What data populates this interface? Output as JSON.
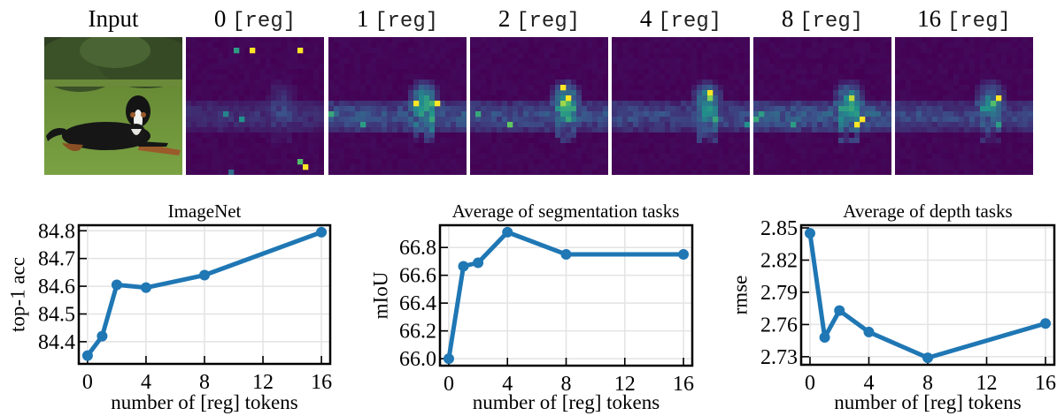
{
  "image_panels": {
    "titles": [
      {
        "num": "Input",
        "mono": ""
      },
      {
        "num": "0",
        "mono": "[reg]"
      },
      {
        "num": "1",
        "mono": "[reg]"
      },
      {
        "num": "2",
        "mono": "[reg]"
      },
      {
        "num": "4",
        "mono": "[reg]"
      },
      {
        "num": "8",
        "mono": "[reg]"
      },
      {
        "num": "16",
        "mono": "[reg]"
      }
    ],
    "colormap": "viridis",
    "colors": {
      "low": "#440154",
      "mid": "#31688e",
      "teal": "#35b779",
      "high": "#fde725"
    }
  },
  "chart_data": [
    {
      "type": "line",
      "title": "ImageNet",
      "xlabel": "number of [reg] tokens",
      "ylabel": "top-1 acc",
      "x": [
        0,
        1,
        2,
        4,
        8,
        16
      ],
      "values": [
        84.35,
        84.42,
        84.605,
        84.595,
        84.64,
        84.795
      ],
      "xlim": [
        -0.6,
        16.6
      ],
      "ylim": [
        84.32,
        84.82
      ],
      "xticks": [
        0,
        4,
        8,
        12,
        16
      ],
      "xtick_labels": [
        "0",
        "4",
        "8",
        "12",
        "16"
      ],
      "yticks": [
        84.4,
        84.5,
        84.6,
        84.7,
        84.8
      ],
      "ytick_labels": [
        "84.4",
        "84.5",
        "84.6",
        "84.7",
        "84.8"
      ],
      "grid": true,
      "color": "#1f77b4"
    },
    {
      "type": "line",
      "title": "Average of segmentation tasks",
      "xlabel": "number of [reg] tokens",
      "ylabel": "mIoU",
      "x": [
        0,
        1,
        2,
        4,
        8,
        16
      ],
      "values": [
        66.0,
        66.665,
        66.69,
        66.91,
        66.75,
        66.75
      ],
      "xlim": [
        -0.6,
        16.6
      ],
      "ylim": [
        65.95,
        66.96
      ],
      "xticks": [
        0,
        4,
        8,
        12,
        16
      ],
      "xtick_labels": [
        "0",
        "4",
        "8",
        "12",
        "16"
      ],
      "yticks": [
        66.0,
        66.2,
        66.4,
        66.6,
        66.8
      ],
      "ytick_labels": [
        "66.0",
        "66.2",
        "66.4",
        "66.6",
        "66.8"
      ],
      "grid": true,
      "color": "#1f77b4"
    },
    {
      "type": "line",
      "title": "Average of depth tasks",
      "xlabel": "number of [reg] tokens",
      "ylabel": "rmse",
      "x": [
        0,
        1,
        2,
        4,
        8,
        16
      ],
      "values": [
        2.845,
        2.748,
        2.773,
        2.753,
        2.729,
        2.761
      ],
      "xlim": [
        -0.6,
        16.6
      ],
      "ylim": [
        2.7225,
        2.8525
      ],
      "xticks": [
        0,
        4,
        8,
        12,
        16
      ],
      "xtick_labels": [
        "0",
        "4",
        "8",
        "12",
        "16"
      ],
      "yticks": [
        2.73,
        2.76,
        2.79,
        2.82,
        2.85
      ],
      "ytick_labels": [
        "2.73",
        "2.76",
        "2.79",
        "2.82",
        "2.85"
      ],
      "grid": true,
      "color": "#1f77b4"
    }
  ]
}
